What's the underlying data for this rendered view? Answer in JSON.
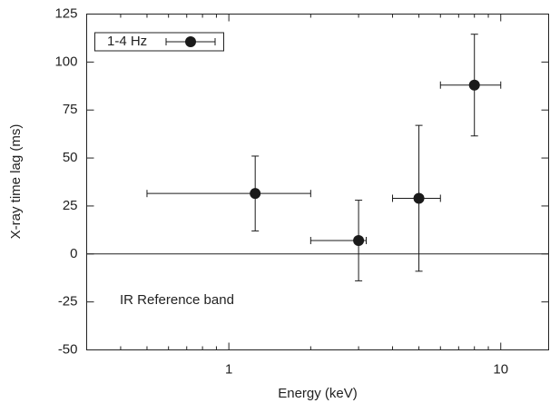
{
  "chart_data": {
    "type": "scatter",
    "xlabel": "Energy (keV)",
    "ylabel": "X-ray time lag (ms)",
    "annotation": "IR Reference band",
    "log_x": true,
    "xlim": [
      0.3,
      15
    ],
    "xticks": [
      1,
      10
    ],
    "xminorticks": [
      0.4,
      0.5,
      0.6,
      0.7,
      0.8,
      0.9,
      2,
      3,
      4,
      5,
      6,
      7,
      8,
      9
    ],
    "ylim": [
      -50,
      125
    ],
    "yticks": [
      -50,
      -25,
      0,
      25,
      50,
      75,
      100,
      125
    ],
    "reference_line": 0,
    "legend": "upper left",
    "series": [
      {
        "name": "1-4 Hz",
        "color": "#1a1a1a",
        "x": [
          1.25,
          3,
          5,
          8
        ],
        "values": [
          31.5,
          7,
          29,
          88
        ],
        "x_low": [
          0.5,
          2,
          4,
          6
        ],
        "x_high": [
          2,
          3.2,
          6,
          10
        ],
        "y_err": [
          19.5,
          21,
          38,
          26.5
        ]
      }
    ]
  }
}
